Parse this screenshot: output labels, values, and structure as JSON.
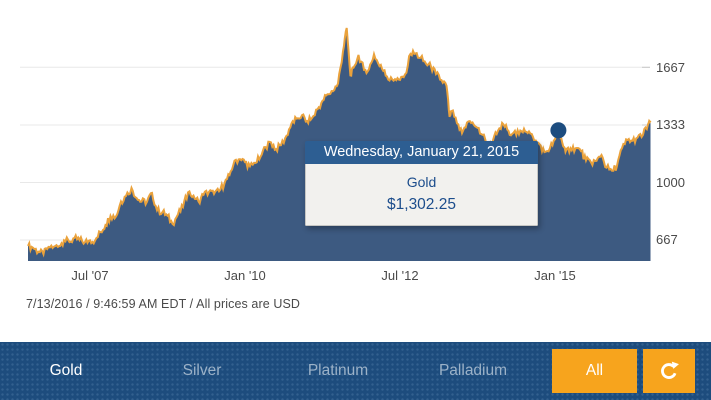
{
  "footer": {
    "text": "7/13/2016 / 9:46:59 AM EDT / All prices are USD"
  },
  "tooltip": {
    "title": "Wednesday, January 21, 2015",
    "series": "Gold",
    "value": "$1,302.25"
  },
  "nav": {
    "items": [
      {
        "label": "Gold",
        "active": true
      },
      {
        "label": "Silver",
        "active": false
      },
      {
        "label": "Platinum",
        "active": false
      },
      {
        "label": "Palladium",
        "active": false
      }
    ],
    "all_label": "All",
    "refresh_icon": "refresh-icon"
  },
  "colors": {
    "navbar": "#1d4c7d",
    "nav_inactive_text": "#9cb2c8",
    "accent_orange": "#f7a41d",
    "area_fill": "#3d5a81",
    "line_stroke": "#eaa23c",
    "grid": "#e8e8e8",
    "axis_text": "#4a4a4a",
    "tooltip_header_bg": "#2d5e92",
    "tooltip_body_bg": "#f2f1ee",
    "tooltip_text": "#1c4d8c",
    "marker": "#1c4c7f"
  },
  "chart_data": {
    "type": "area",
    "title": "Gold price, USD per oz, 10 years (Jul 2006 - Jul 2016)",
    "xlabel": "",
    "ylabel": "",
    "grid": true,
    "xlim": [
      2006.5,
      2016.56
    ],
    "ylim": [
      545,
      1960
    ],
    "yticks": [
      {
        "label": "1667",
        "value": 1667
      },
      {
        "label": "1333",
        "value": 1333
      },
      {
        "label": "1000",
        "value": 1000
      },
      {
        "label": "667",
        "value": 667
      }
    ],
    "xticks": [
      {
        "label": "Jul '07",
        "t": 2007.5
      },
      {
        "label": "Jan '10",
        "t": 2010.0
      },
      {
        "label": "Jul '12",
        "t": 2012.5
      },
      {
        "label": "Jan '15",
        "t": 2015.0
      }
    ],
    "marker": {
      "t": 2015.055,
      "value": 1302.25,
      "date": "Wednesday, January 21, 2015"
    },
    "series": [
      {
        "name": "Gold",
        "points": [
          [
            2006.5,
            633
          ],
          [
            2006.58,
            622
          ],
          [
            2006.67,
            599
          ],
          [
            2006.75,
            585
          ],
          [
            2006.83,
            627
          ],
          [
            2006.92,
            629
          ],
          [
            2007.0,
            631
          ],
          [
            2007.08,
            665
          ],
          [
            2007.17,
            655
          ],
          [
            2007.25,
            679
          ],
          [
            2007.33,
            667
          ],
          [
            2007.42,
            655
          ],
          [
            2007.5,
            665
          ],
          [
            2007.58,
            663
          ],
          [
            2007.67,
            713
          ],
          [
            2007.75,
            754
          ],
          [
            2007.83,
            806
          ],
          [
            2007.92,
            803
          ],
          [
            2008.0,
            890
          ],
          [
            2008.08,
            922
          ],
          [
            2008.17,
            968
          ],
          [
            2008.25,
            910
          ],
          [
            2008.33,
            889
          ],
          [
            2008.42,
            889
          ],
          [
            2008.5,
            940
          ],
          [
            2008.58,
            839
          ],
          [
            2008.67,
            829
          ],
          [
            2008.75,
            807
          ],
          [
            2008.83,
            760
          ],
          [
            2008.92,
            816
          ],
          [
            2009.0,
            858
          ],
          [
            2009.08,
            943
          ],
          [
            2009.17,
            924
          ],
          [
            2009.25,
            890
          ],
          [
            2009.33,
            929
          ],
          [
            2009.42,
            946
          ],
          [
            2009.5,
            934
          ],
          [
            2009.58,
            949
          ],
          [
            2009.67,
            996
          ],
          [
            2009.75,
            1043
          ],
          [
            2009.83,
            1127
          ],
          [
            2009.92,
            1135
          ],
          [
            2010.0,
            1118
          ],
          [
            2010.08,
            1095
          ],
          [
            2010.17,
            1113
          ],
          [
            2010.25,
            1149
          ],
          [
            2010.33,
            1205
          ],
          [
            2010.42,
            1232
          ],
          [
            2010.5,
            1193
          ],
          [
            2010.58,
            1216
          ],
          [
            2010.67,
            1271
          ],
          [
            2010.75,
            1342
          ],
          [
            2010.83,
            1370
          ],
          [
            2010.92,
            1390
          ],
          [
            2011.0,
            1356
          ],
          [
            2011.08,
            1373
          ],
          [
            2011.17,
            1424
          ],
          [
            2011.25,
            1473
          ],
          [
            2011.33,
            1511
          ],
          [
            2011.42,
            1529
          ],
          [
            2011.5,
            1573
          ],
          [
            2011.58,
            1760
          ],
          [
            2011.64,
            1895
          ],
          [
            2011.7,
            1620
          ],
          [
            2011.75,
            1665
          ],
          [
            2011.83,
            1739
          ],
          [
            2011.92,
            1652
          ],
          [
            2012.0,
            1656
          ],
          [
            2012.08,
            1743
          ],
          [
            2012.17,
            1674
          ],
          [
            2012.25,
            1650
          ],
          [
            2012.33,
            1591
          ],
          [
            2012.42,
            1599
          ],
          [
            2012.5,
            1594
          ],
          [
            2012.58,
            1626
          ],
          [
            2012.67,
            1745
          ],
          [
            2012.75,
            1747
          ],
          [
            2012.83,
            1722
          ],
          [
            2012.92,
            1688
          ],
          [
            2013.0,
            1671
          ],
          [
            2013.08,
            1628
          ],
          [
            2013.17,
            1593
          ],
          [
            2013.25,
            1560
          ],
          [
            2013.3,
            1380
          ],
          [
            2013.33,
            1414
          ],
          [
            2013.42,
            1342
          ],
          [
            2013.5,
            1286
          ],
          [
            2013.58,
            1347
          ],
          [
            2013.67,
            1348
          ],
          [
            2013.75,
            1316
          ],
          [
            2013.83,
            1276
          ],
          [
            2013.92,
            1221
          ],
          [
            2014.0,
            1244
          ],
          [
            2014.08,
            1300
          ],
          [
            2014.17,
            1336
          ],
          [
            2014.25,
            1298
          ],
          [
            2014.33,
            1288
          ],
          [
            2014.42,
            1279
          ],
          [
            2014.5,
            1311
          ],
          [
            2014.58,
            1296
          ],
          [
            2014.67,
            1237
          ],
          [
            2014.75,
            1222
          ],
          [
            2014.83,
            1176
          ],
          [
            2014.92,
            1200
          ],
          [
            2015.0,
            1250
          ],
          [
            2015.055,
            1302.25
          ],
          [
            2015.12,
            1227
          ],
          [
            2015.17,
            1178
          ],
          [
            2015.25,
            1198
          ],
          [
            2015.33,
            1198
          ],
          [
            2015.42,
            1181
          ],
          [
            2015.5,
            1128
          ],
          [
            2015.58,
            1117
          ],
          [
            2015.67,
            1125
          ],
          [
            2015.75,
            1159
          ],
          [
            2015.83,
            1086
          ],
          [
            2015.92,
            1068
          ],
          [
            2016.0,
            1097
          ],
          [
            2016.08,
            1199
          ],
          [
            2016.17,
            1246
          ],
          [
            2016.25,
            1242
          ],
          [
            2016.33,
            1260
          ],
          [
            2016.42,
            1276
          ],
          [
            2016.5,
            1337
          ],
          [
            2016.54,
            1358
          ]
        ]
      }
    ]
  }
}
